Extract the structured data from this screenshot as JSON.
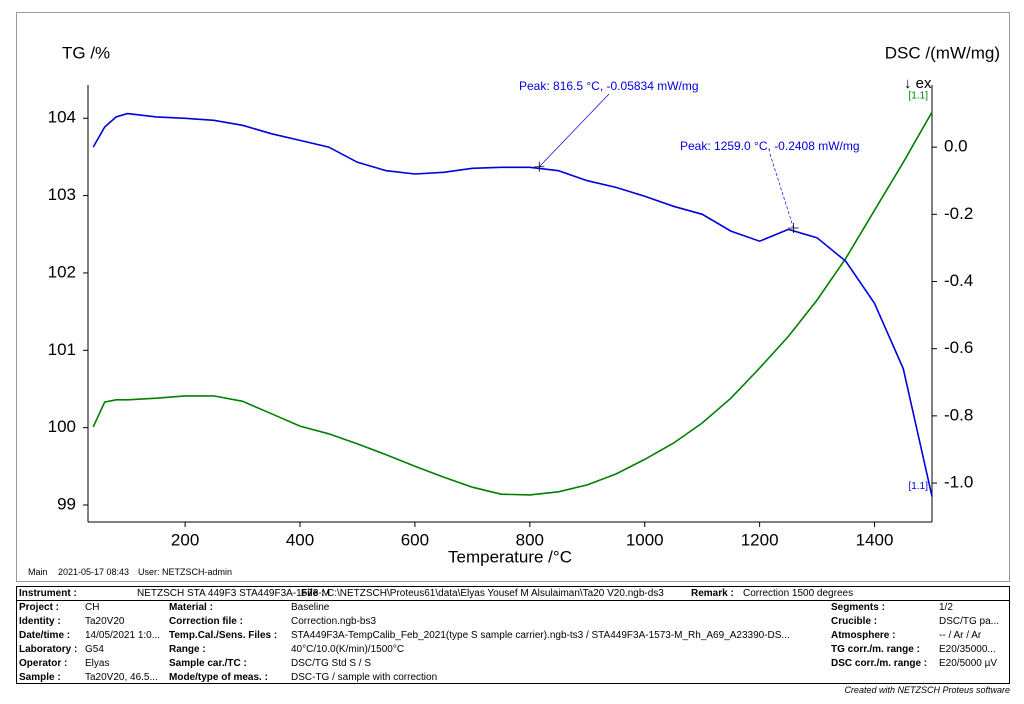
{
  "chart_data": {
    "type": "line",
    "y_label": "TG /%",
    "y2_label": "DSC /(mW/mg)",
    "x_label": "Temperature /°C",
    "exo_label": "↓ ex",
    "x": [
      40,
      60,
      80,
      100,
      150,
      200,
      250,
      300,
      350,
      400,
      450,
      500,
      550,
      600,
      650,
      700,
      750,
      800,
      850,
      900,
      950,
      1000,
      1050,
      1100,
      1150,
      1200,
      1250,
      1300,
      1350,
      1400,
      1450,
      1500
    ],
    "series": [
      {
        "name": "[1.1]",
        "color": "#008000",
        "axis": "y",
        "values": [
          100.01,
          100.33,
          100.36,
          100.36,
          100.38,
          100.41,
          100.41,
          100.34,
          100.18,
          100.02,
          99.92,
          99.79,
          99.65,
          99.5,
          99.36,
          99.23,
          99.14,
          99.13,
          99.17,
          99.26,
          99.4,
          99.59,
          99.8,
          100.06,
          100.38,
          100.77,
          101.18,
          101.65,
          102.19,
          102.81,
          103.43,
          104.08
        ]
      },
      {
        "name": "[1.1]",
        "color": "#0000dd",
        "axis": "y2",
        "values": [
          0.0,
          0.06,
          0.09,
          0.1,
          0.09,
          0.086,
          0.08,
          0.065,
          0.04,
          0.02,
          0.0,
          -0.045,
          -0.07,
          -0.08,
          -0.075,
          -0.063,
          -0.06,
          -0.06,
          -0.07,
          -0.1,
          -0.12,
          -0.146,
          -0.176,
          -0.2,
          -0.25,
          -0.28,
          -0.245,
          -0.27,
          -0.34,
          -0.465,
          -0.66,
          -1.04
        ]
      }
    ],
    "annotations": [
      {
        "text": "Peak: 816.5 °C, -0.05834 mW/mg",
        "x": 816.5,
        "y": -0.05834
      },
      {
        "text": "Peak: 1259.0 °C, -0.2408 mW/mg",
        "x": 1259.0,
        "y": -0.2408
      }
    ],
    "xlim": [
      31,
      1500
    ],
    "xticks": [
      200,
      400,
      600,
      800,
      1000,
      1200,
      1400
    ],
    "ylim": [
      98.78,
      104.43
    ],
    "yticks": [
      99,
      100,
      101,
      102,
      103,
      104
    ],
    "y2lim": [
      -1.116,
      0.185
    ],
    "y2ticks": [
      {
        "value": 0,
        "label": "0.0"
      },
      -0.2,
      -0.4,
      -0.6,
      -0.8,
      {
        "value": -1,
        "label": "-1.0"
      }
    ]
  },
  "footer": {
    "mode": "Main",
    "datetime": "2021-05-17 08:43",
    "user": "User: NETZSCH-admin"
  },
  "info": {
    "header": [
      "Instrument :",
      "NETZSCH STA 449F3 STA449F3A-1573-M",
      "File :",
      "C:\\NETZSCH\\Proteus61\\data\\Elyas Yousef M Alsulaiman\\Ta20 V20.ngb-ds3",
      "Remark :",
      "Correction 1500 degrees"
    ],
    "rows": [
      [
        "Project :",
        "CH",
        "Material :",
        "Baseline",
        "Segments :",
        "1/2"
      ],
      [
        "Identity :",
        "Ta20V20",
        "Correction file :",
        "Correction.ngb-bs3",
        "Crucible :",
        "DSC/TG pa..."
      ],
      [
        "Date/time :",
        "14/05/2021 1:0...",
        "Temp.Cal./Sens. Files :",
        "STA449F3A-TempCalib_Feb_2021(type S sample carrier).ngb-ts3 / STA449F3A-1573-M_Rh_A69_A23390-DS...",
        "Atmosphere :",
        "-- / Ar / Ar"
      ],
      [
        "Laboratory :",
        "G54",
        "Range :",
        "40°C/10.0(K/min)/1500°C",
        "TG corr./m. range :",
        "E20/35000..."
      ],
      [
        "Operator :",
        "Elyas",
        "Sample car./TC :",
        "DSC/TG Std S / S",
        "DSC corr./m. range :",
        "E20/5000 µV"
      ],
      [
        "Sample :",
        "Ta20V20, 46.5...",
        "Mode/type of meas. :",
        "DSC-TG / sample with correction"
      ]
    ]
  },
  "credit": "Created with NETZSCH Proteus software"
}
